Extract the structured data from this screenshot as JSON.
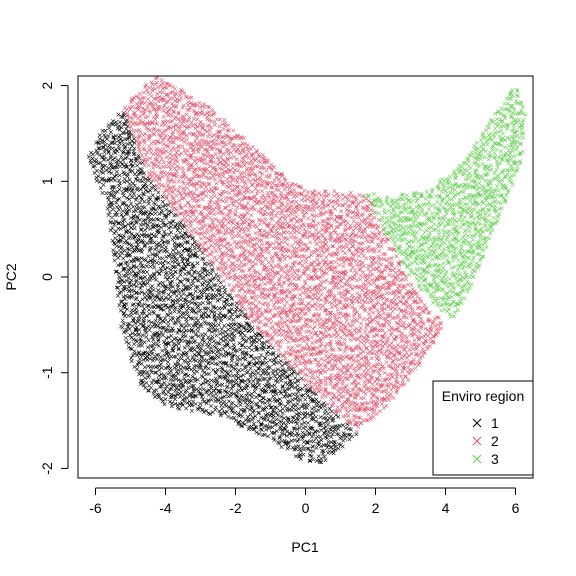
{
  "chart_data": {
    "type": "scatter",
    "xlabel": "PC1",
    "ylabel": "PC2",
    "xlim": [
      -6.5,
      6.5
    ],
    "ylim": [
      -2.1,
      2.1
    ],
    "x_ticks": [
      -6,
      -4,
      -2,
      0,
      2,
      4,
      6
    ],
    "y_ticks": [
      -2,
      -1,
      0,
      1,
      2
    ],
    "x_tick_labels": [
      "-6",
      "-4",
      "-2",
      "0",
      "2",
      "4",
      "6"
    ],
    "y_tick_labels": [
      "-2",
      "-1",
      "0",
      "1",
      "2"
    ],
    "marker": "x",
    "legend": {
      "title": "Enviro region",
      "position": "bottom-right",
      "entries": [
        {
          "label": "1",
          "color": "#000000"
        },
        {
          "label": "2",
          "color": "#DF536B"
        },
        {
          "label": "3",
          "color": "#61D04F"
        }
      ]
    },
    "series": [
      {
        "name": "1",
        "color": "#000000",
        "region_outline": [
          [
            -5.2,
            1.75
          ],
          [
            -4.5,
            1.05
          ],
          [
            -3.0,
            0.3
          ],
          [
            -1.5,
            -0.5
          ],
          [
            0.0,
            -1.1
          ],
          [
            1.5,
            -1.65
          ],
          [
            1.3,
            -1.7
          ],
          [
            0.5,
            -1.95
          ],
          [
            -0.2,
            -1.9
          ],
          [
            -1.0,
            -1.7
          ],
          [
            -2.5,
            -1.45
          ],
          [
            -4.0,
            -1.35
          ],
          [
            -4.8,
            -1.1
          ],
          [
            -5.3,
            -0.5
          ],
          [
            -5.5,
            0.3
          ],
          [
            -5.7,
            0.8
          ],
          [
            -6.0,
            1.0
          ],
          [
            -6.2,
            1.25
          ],
          [
            -5.8,
            1.55
          ]
        ]
      },
      {
        "name": "2",
        "color": "#DF536B",
        "region_outline": [
          [
            -5.0,
            1.85
          ],
          [
            -4.3,
            2.1
          ],
          [
            -3.0,
            1.85
          ],
          [
            -2.0,
            1.55
          ],
          [
            -1.0,
            1.2
          ],
          [
            0.0,
            0.9
          ],
          [
            1.0,
            0.9
          ],
          [
            1.8,
            0.85
          ],
          [
            2.5,
            0.3
          ],
          [
            3.5,
            -0.35
          ],
          [
            4.0,
            -0.45
          ],
          [
            3.5,
            -0.8
          ],
          [
            2.5,
            -1.3
          ],
          [
            1.5,
            -1.6
          ],
          [
            1.5,
            -1.65
          ],
          [
            0.0,
            -1.1
          ],
          [
            -1.5,
            -0.5
          ],
          [
            -3.0,
            0.3
          ],
          [
            -4.5,
            1.05
          ],
          [
            -5.2,
            1.75
          ]
        ]
      },
      {
        "name": "3",
        "color": "#61D04F",
        "region_outline": [
          [
            1.6,
            0.9
          ],
          [
            2.5,
            0.85
          ],
          [
            3.5,
            0.9
          ],
          [
            4.5,
            1.2
          ],
          [
            5.5,
            1.75
          ],
          [
            6.0,
            2.0
          ],
          [
            6.3,
            1.75
          ],
          [
            6.2,
            1.2
          ],
          [
            5.5,
            0.6
          ],
          [
            4.8,
            -0.05
          ],
          [
            4.2,
            -0.45
          ],
          [
            3.8,
            -0.35
          ],
          [
            3.0,
            0.0
          ],
          [
            2.3,
            0.45
          ]
        ]
      }
    ]
  }
}
